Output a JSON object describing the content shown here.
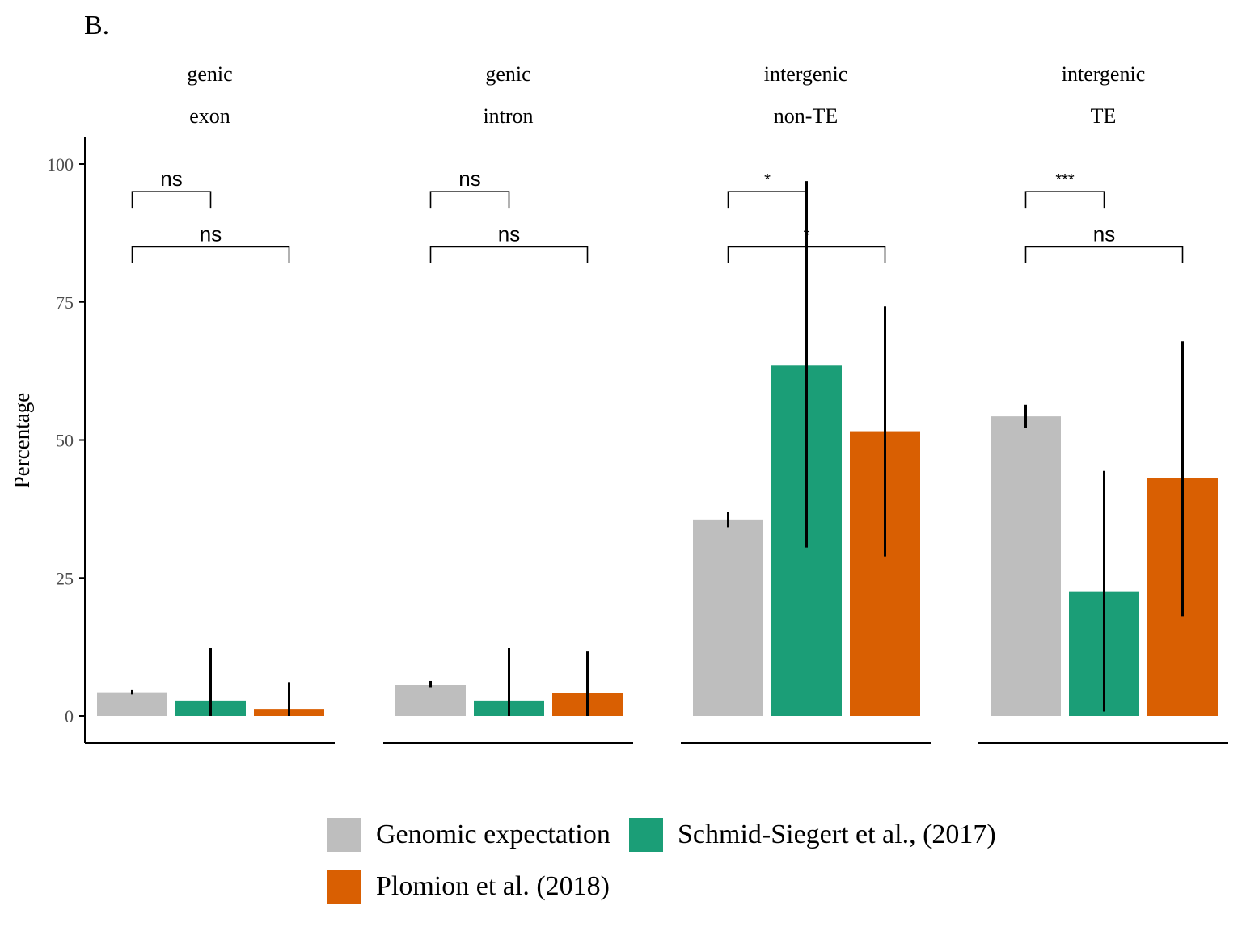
{
  "panel_label": "B.",
  "colors": {
    "Genomic expectation": "#bebebe",
    "Schmid-Siegert et al., (2017)": "#1b9e77",
    "Plomion et al. (2018)": "#d95f02"
  },
  "chart_data": {
    "type": "bar",
    "ylabel": "Percentage",
    "xlabel": "",
    "ylim": [
      0,
      100
    ],
    "yticks": [
      0,
      25,
      50,
      75,
      100
    ],
    "grid": false,
    "legend_position": "bottom",
    "series_names": [
      "Genomic expectation",
      "Schmid-Siegert et al., (2017)",
      "Plomion et al. (2018)"
    ],
    "facets": [
      {
        "strip": [
          "genic",
          "exon"
        ],
        "values": [
          4.3,
          2.8,
          1.3
        ],
        "errors": [
          [
            3.9,
            4.7
          ],
          [
            0,
            12.3
          ],
          [
            0,
            6.1
          ]
        ],
        "comparisons": [
          {
            "pair": [
              0,
              1
            ],
            "label": "ns",
            "y": 95
          },
          {
            "pair": [
              0,
              2
            ],
            "label": "ns",
            "y": 85
          }
        ]
      },
      {
        "strip": [
          "genic",
          "intron"
        ],
        "values": [
          5.7,
          2.8,
          4.1
        ],
        "errors": [
          [
            5.2,
            6.3
          ],
          [
            0,
            12.3
          ],
          [
            0,
            11.7
          ]
        ],
        "comparisons": [
          {
            "pair": [
              0,
              1
            ],
            "label": "ns",
            "y": 95
          },
          {
            "pair": [
              0,
              2
            ],
            "label": "ns",
            "y": 85
          }
        ]
      },
      {
        "strip": [
          "intergenic",
          "non-TE"
        ],
        "values": [
          35.6,
          63.5,
          51.6
        ],
        "errors": [
          [
            34.2,
            36.9
          ],
          [
            30.5,
            96.9
          ],
          [
            28.9,
            74.2
          ]
        ],
        "comparisons": [
          {
            "pair": [
              0,
              1
            ],
            "label": "*",
            "y": 95
          },
          {
            "pair": [
              0,
              2
            ],
            "label": "*",
            "y": 85
          }
        ]
      },
      {
        "strip": [
          "intergenic",
          "TE"
        ],
        "values": [
          54.3,
          22.6,
          43.1
        ],
        "errors": [
          [
            52.2,
            56.4
          ],
          [
            0.8,
            44.4
          ],
          [
            18.1,
            67.9
          ]
        ],
        "comparisons": [
          {
            "pair": [
              0,
              1
            ],
            "label": "***",
            "y": 95
          },
          {
            "pair": [
              0,
              2
            ],
            "label": "ns",
            "y": 85
          }
        ]
      }
    ]
  }
}
